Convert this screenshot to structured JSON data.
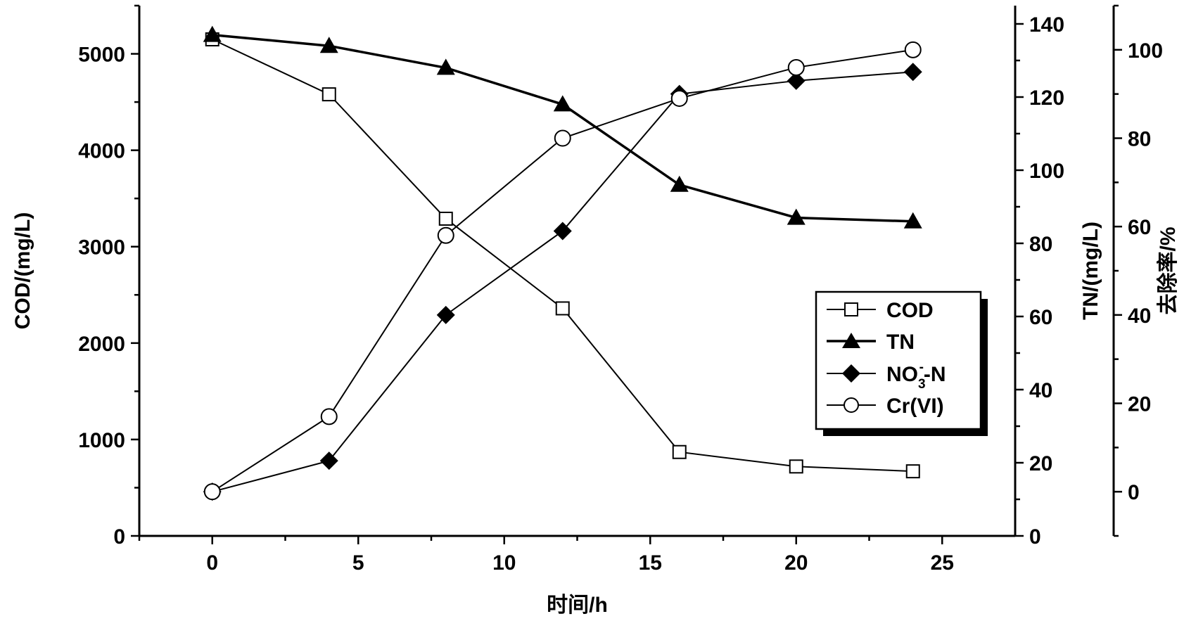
{
  "chart_data": {
    "type": "line",
    "x_axis": {
      "label": "时间/h",
      "range": [
        -2.5,
        27.5
      ],
      "ticks": [
        0,
        5,
        10,
        15,
        20,
        25
      ]
    },
    "y_axes": [
      {
        "id": "cod",
        "label": "COD/(mg/L)",
        "range": [
          0,
          5500
        ],
        "ticks": [
          0,
          1000,
          2000,
          3000,
          4000,
          5000
        ],
        "position": "left"
      },
      {
        "id": "tn",
        "label": "TN/(mg/L)",
        "range": [
          0,
          145
        ],
        "ticks": [
          0,
          20,
          40,
          60,
          80,
          100,
          120,
          140
        ],
        "position": "right"
      },
      {
        "id": "removal",
        "label": "去除率/%",
        "range": [
          -10,
          110
        ],
        "ticks": [
          0,
          20,
          40,
          60,
          80,
          100
        ],
        "position": "right-outer"
      }
    ],
    "series": [
      {
        "name": "COD",
        "axis": "cod",
        "marker": "open-square",
        "line_width": 2,
        "x": [
          0,
          4,
          8,
          12,
          16,
          20,
          24
        ],
        "y": [
          5150,
          4580,
          3290,
          2360,
          870,
          720,
          670
        ]
      },
      {
        "name": "TN",
        "axis": "tn",
        "marker": "filled-triangle",
        "line_width": 3.5,
        "x": [
          0,
          4,
          8,
          12,
          16,
          20,
          24
        ],
        "y": [
          137,
          134,
          128,
          118,
          96,
          87,
          86
        ]
      },
      {
        "name": "NO3-N",
        "axis": "removal",
        "marker": "filled-diamond",
        "line_width": 2,
        "x": [
          0,
          4,
          8,
          12,
          16,
          20,
          24
        ],
        "y": [
          0,
          7,
          40,
          59,
          90,
          93,
          95
        ]
      },
      {
        "name": "Cr(VI)",
        "axis": "removal",
        "marker": "open-circle",
        "line_width": 2,
        "x": [
          0,
          4,
          8,
          12,
          16,
          20,
          24
        ],
        "y": [
          0,
          17,
          58,
          80,
          89,
          96,
          100
        ]
      }
    ],
    "legend": {
      "position": "right-middle",
      "entries": [
        "COD",
        "TN",
        "NO3-N",
        "Cr(VI)"
      ]
    },
    "grid": false
  },
  "labels": {
    "legend_no3_main": "NO",
    "legend_no3_sub": "3",
    "legend_no3_sup": "-",
    "legend_no3_tail": "-N"
  }
}
